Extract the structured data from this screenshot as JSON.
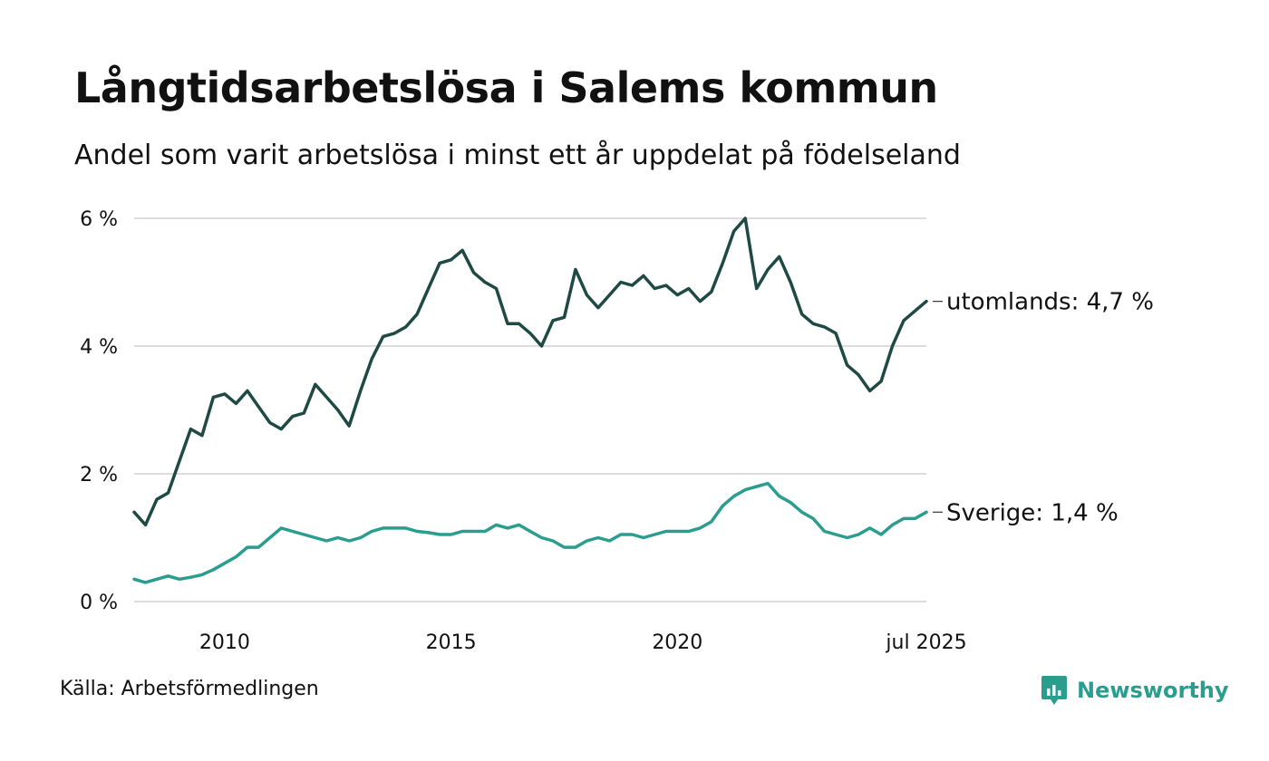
{
  "title": "Långtidsarbetslösa i Salems kommun",
  "subtitle": "Andel som varit arbetslösa i minst ett år uppdelat på födelseland",
  "source": "Källa: Arbetsförmedlingen",
  "brand": "Newsworthy",
  "colors": {
    "utomlands": "#1f4a44",
    "sverige": "#2a9d8f",
    "grid": "#dcdcdc",
    "brand": "#2a9d8f"
  },
  "chart_data": {
    "type": "line",
    "title": "Långtidsarbetslösa i Salems kommun",
    "xlabel": "",
    "ylabel": "",
    "xlim": [
      "2008-01",
      "2025-07"
    ],
    "ylim": [
      0,
      6
    ],
    "yticks": [
      0,
      2,
      4,
      6
    ],
    "ytick_labels": [
      "0 %",
      "2 %",
      "4 %",
      "6 %"
    ],
    "xticks": [
      2010,
      2015,
      2020,
      "2025-07"
    ],
    "xtick_labels": [
      "2010",
      "2015",
      "2020",
      "jul 2025"
    ],
    "grid": true,
    "legend": "end-labels",
    "series": [
      {
        "name": "utomlands",
        "end_label": "utomlands: 4,7 %",
        "points": [
          [
            "2008-01",
            1.4
          ],
          [
            "2008-04",
            1.2
          ],
          [
            "2008-07",
            1.6
          ],
          [
            "2008-10",
            1.7
          ],
          [
            "2009-01",
            2.2
          ],
          [
            "2009-04",
            2.7
          ],
          [
            "2009-07",
            2.6
          ],
          [
            "2009-10",
            3.2
          ],
          [
            "2010-01",
            3.25
          ],
          [
            "2010-04",
            3.1
          ],
          [
            "2010-07",
            3.3
          ],
          [
            "2010-10",
            3.05
          ],
          [
            "2011-01",
            2.8
          ],
          [
            "2011-04",
            2.7
          ],
          [
            "2011-07",
            2.9
          ],
          [
            "2011-10",
            2.95
          ],
          [
            "2012-01",
            3.4
          ],
          [
            "2012-04",
            3.2
          ],
          [
            "2012-07",
            3.0
          ],
          [
            "2012-10",
            2.75
          ],
          [
            "2013-01",
            3.3
          ],
          [
            "2013-04",
            3.8
          ],
          [
            "2013-07",
            4.15
          ],
          [
            "2013-10",
            4.2
          ],
          [
            "2014-01",
            4.3
          ],
          [
            "2014-04",
            4.5
          ],
          [
            "2014-07",
            4.9
          ],
          [
            "2014-10",
            5.3
          ],
          [
            "2015-01",
            5.35
          ],
          [
            "2015-04",
            5.5
          ],
          [
            "2015-07",
            5.15
          ],
          [
            "2015-10",
            5.0
          ],
          [
            "2016-01",
            4.9
          ],
          [
            "2016-04",
            4.35
          ],
          [
            "2016-07",
            4.35
          ],
          [
            "2016-10",
            4.2
          ],
          [
            "2017-01",
            4.0
          ],
          [
            "2017-04",
            4.4
          ],
          [
            "2017-07",
            4.45
          ],
          [
            "2017-10",
            5.2
          ],
          [
            "2018-01",
            4.8
          ],
          [
            "2018-04",
            4.6
          ],
          [
            "2018-07",
            4.8
          ],
          [
            "2018-10",
            5.0
          ],
          [
            "2019-01",
            4.95
          ],
          [
            "2019-04",
            5.1
          ],
          [
            "2019-07",
            4.9
          ],
          [
            "2019-10",
            4.95
          ],
          [
            "2020-01",
            4.8
          ],
          [
            "2020-04",
            4.9
          ],
          [
            "2020-07",
            4.7
          ],
          [
            "2020-10",
            4.85
          ],
          [
            "2021-01",
            5.3
          ],
          [
            "2021-04",
            5.8
          ],
          [
            "2021-07",
            6.0
          ],
          [
            "2021-10",
            4.9
          ],
          [
            "2022-01",
            5.2
          ],
          [
            "2022-04",
            5.4
          ],
          [
            "2022-07",
            5.0
          ],
          [
            "2022-10",
            4.5
          ],
          [
            "2023-01",
            4.35
          ],
          [
            "2023-04",
            4.3
          ],
          [
            "2023-07",
            4.2
          ],
          [
            "2023-10",
            3.7
          ],
          [
            "2024-01",
            3.55
          ],
          [
            "2024-04",
            3.3
          ],
          [
            "2024-07",
            3.45
          ],
          [
            "2024-10",
            4.0
          ],
          [
            "2025-01",
            4.4
          ],
          [
            "2025-04",
            4.55
          ],
          [
            "2025-07",
            4.7
          ]
        ]
      },
      {
        "name": "Sverige",
        "end_label": "Sverige: 1,4 %",
        "points": [
          [
            "2008-01",
            0.35
          ],
          [
            "2008-04",
            0.3
          ],
          [
            "2008-07",
            0.35
          ],
          [
            "2008-10",
            0.4
          ],
          [
            "2009-01",
            0.35
          ],
          [
            "2009-04",
            0.38
          ],
          [
            "2009-07",
            0.42
          ],
          [
            "2009-10",
            0.5
          ],
          [
            "2010-01",
            0.6
          ],
          [
            "2010-04",
            0.7
          ],
          [
            "2010-07",
            0.85
          ],
          [
            "2010-10",
            0.85
          ],
          [
            "2011-01",
            1.0
          ],
          [
            "2011-04",
            1.15
          ],
          [
            "2011-07",
            1.1
          ],
          [
            "2011-10",
            1.05
          ],
          [
            "2012-01",
            1.0
          ],
          [
            "2012-04",
            0.95
          ],
          [
            "2012-07",
            1.0
          ],
          [
            "2012-10",
            0.95
          ],
          [
            "2013-01",
            1.0
          ],
          [
            "2013-04",
            1.1
          ],
          [
            "2013-07",
            1.15
          ],
          [
            "2013-10",
            1.15
          ],
          [
            "2014-01",
            1.15
          ],
          [
            "2014-04",
            1.1
          ],
          [
            "2014-07",
            1.08
          ],
          [
            "2014-10",
            1.05
          ],
          [
            "2015-01",
            1.05
          ],
          [
            "2015-04",
            1.1
          ],
          [
            "2015-07",
            1.1
          ],
          [
            "2015-10",
            1.1
          ],
          [
            "2016-01",
            1.2
          ],
          [
            "2016-04",
            1.15
          ],
          [
            "2016-07",
            1.2
          ],
          [
            "2016-10",
            1.1
          ],
          [
            "2017-01",
            1.0
          ],
          [
            "2017-04",
            0.95
          ],
          [
            "2017-07",
            0.85
          ],
          [
            "2017-10",
            0.85
          ],
          [
            "2018-01",
            0.95
          ],
          [
            "2018-04",
            1.0
          ],
          [
            "2018-07",
            0.95
          ],
          [
            "2018-10",
            1.05
          ],
          [
            "2019-01",
            1.05
          ],
          [
            "2019-04",
            1.0
          ],
          [
            "2019-07",
            1.05
          ],
          [
            "2019-10",
            1.1
          ],
          [
            "2020-01",
            1.1
          ],
          [
            "2020-04",
            1.1
          ],
          [
            "2020-07",
            1.15
          ],
          [
            "2020-10",
            1.25
          ],
          [
            "2021-01",
            1.5
          ],
          [
            "2021-04",
            1.65
          ],
          [
            "2021-07",
            1.75
          ],
          [
            "2021-10",
            1.8
          ],
          [
            "2022-01",
            1.85
          ],
          [
            "2022-04",
            1.65
          ],
          [
            "2022-07",
            1.55
          ],
          [
            "2022-10",
            1.4
          ],
          [
            "2023-01",
            1.3
          ],
          [
            "2023-04",
            1.1
          ],
          [
            "2023-07",
            1.05
          ],
          [
            "2023-10",
            1.0
          ],
          [
            "2024-01",
            1.05
          ],
          [
            "2024-04",
            1.15
          ],
          [
            "2024-07",
            1.05
          ],
          [
            "2024-10",
            1.2
          ],
          [
            "2025-01",
            1.3
          ],
          [
            "2025-04",
            1.3
          ],
          [
            "2025-07",
            1.4
          ]
        ]
      }
    ]
  }
}
